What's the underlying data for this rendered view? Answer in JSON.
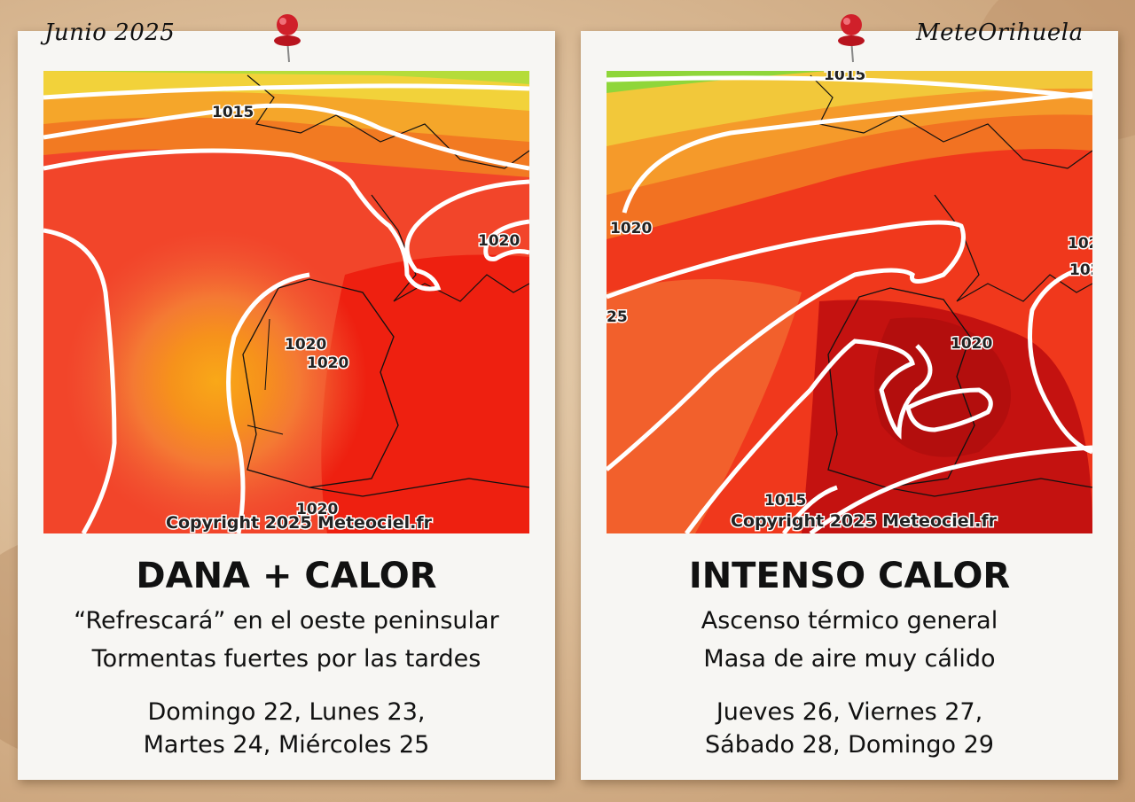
{
  "header": {
    "left_label": "Junio 2025",
    "right_label": "MeteOrihuela"
  },
  "cards": [
    {
      "title": "DANA + CALOR",
      "lines": [
        "“Refrescará” en el oeste peninsular",
        "Tormentas fuertes por las tardes"
      ],
      "dates": [
        "Domingo 22, Lunes 23,",
        "Martes 24, Miércoles 25"
      ],
      "map": {
        "copyright": "Copyright 2025 Meteociel.fr",
        "isobar_labels": [
          "1015",
          "1020",
          "1020",
          "1020",
          "1020"
        ]
      }
    },
    {
      "title": "INTENSO CALOR",
      "lines": [
        "Ascenso térmico general",
        "Masa de aire muy cálido"
      ],
      "dates": [
        "Jueves 26, Viernes 27,",
        "Sábado 28, Domingo 29"
      ],
      "map": {
        "copyright": "Copyright 2025 Meteociel.fr",
        "isobar_labels": [
          "1015",
          "1020",
          "102",
          "1020",
          "25",
          "1015",
          "102"
        ]
      }
    }
  ],
  "colors": {
    "pin": "#d0202a",
    "card": "#f7f6f3",
    "heat_dark": "#c21010",
    "heat_mid": "#f22a10",
    "heat_light": "#f57a1c"
  }
}
